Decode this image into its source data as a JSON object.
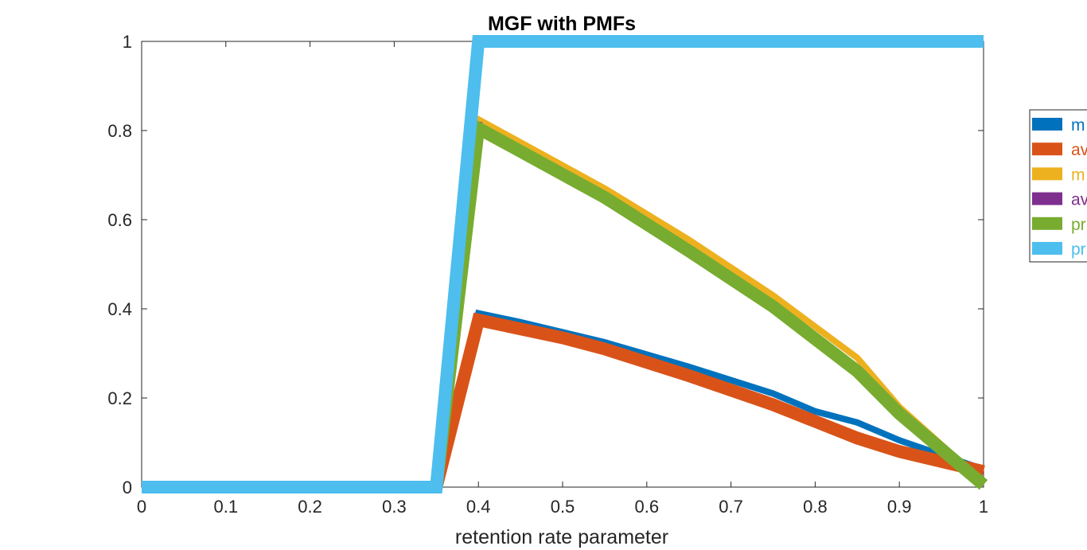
{
  "chart_data": {
    "type": "line",
    "title": "MGF with PMFs",
    "xlabel": "retention rate parameter",
    "ylabel": "",
    "xlim": [
      0,
      1
    ],
    "ylim": [
      0,
      1
    ],
    "xticks": [
      "0",
      "0.1",
      "0.2",
      "0.3",
      "0.4",
      "0.5",
      "0.6",
      "0.7",
      "0.8",
      "0.9",
      "1"
    ],
    "yticks": [
      "0",
      "0.2",
      "0.4",
      "0.6",
      "0.8",
      "1"
    ],
    "grid": false,
    "legend_position": "outside-right",
    "series": [
      {
        "name": "m",
        "color": "#0072BD",
        "width": 8,
        "x": [
          0,
          0.35,
          0.4,
          0.45,
          0.55,
          0.65,
          0.75,
          0.8,
          0.85,
          0.9,
          1
        ],
        "y": [
          0,
          0,
          0.39,
          0.37,
          0.325,
          0.27,
          0.21,
          0.17,
          0.145,
          0.105,
          0.04
        ]
      },
      {
        "name": "av",
        "color": "#D95319",
        "width": 16,
        "x": [
          0,
          0.35,
          0.4,
          0.5,
          0.55,
          0.65,
          0.75,
          0.85,
          0.9,
          1
        ],
        "y": [
          0,
          0,
          0.375,
          0.335,
          0.31,
          0.25,
          0.185,
          0.11,
          0.08,
          0.035
        ]
      },
      {
        "name": "m",
        "color": "#EDB120",
        "width": 8,
        "x": [
          0,
          0.35,
          0.4,
          0.55,
          0.65,
          0.75,
          0.85,
          0.9,
          1
        ],
        "y": [
          0,
          0,
          0.825,
          0.67,
          0.555,
          0.43,
          0.29,
          0.18,
          0.01
        ]
      },
      {
        "name": "av",
        "color": "#7E2F8E",
        "width": 10,
        "x": [
          0,
          0.35,
          0.4
        ],
        "y": [
          0,
          0,
          0.82
        ]
      },
      {
        "name": "pr",
        "color": "#77AC30",
        "width": 16,
        "x": [
          0,
          0.35,
          0.4,
          0.55,
          0.65,
          0.75,
          0.85,
          0.9,
          1
        ],
        "y": [
          0,
          0,
          0.805,
          0.65,
          0.53,
          0.405,
          0.26,
          0.165,
          0.005
        ]
      },
      {
        "name": "pr",
        "color": "#4DBEEE",
        "width": 16,
        "x": [
          0,
          0.35,
          0.4,
          1
        ],
        "y": [
          0,
          0,
          1,
          1
        ]
      }
    ]
  }
}
